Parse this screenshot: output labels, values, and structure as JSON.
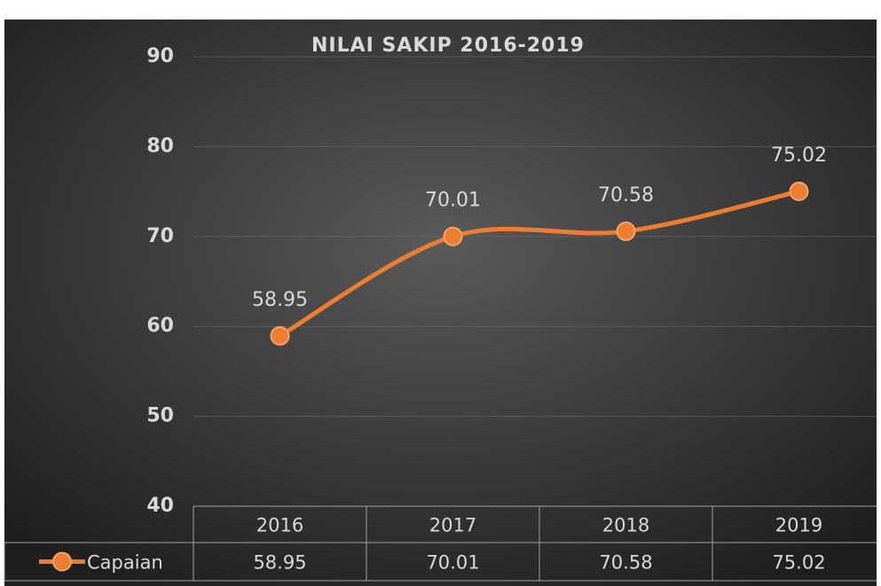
{
  "chart_data": {
    "type": "line",
    "title": "NILAI SAKIP 2016-2019",
    "categories": [
      "2016",
      "2017",
      "2018",
      "2019"
    ],
    "series": [
      {
        "name": "Capaian",
        "color": "#ed7d31",
        "values": [
          58.95,
          70.01,
          70.58,
          75.02
        ]
      }
    ],
    "ylim": [
      40,
      90
    ],
    "yticks": [
      40,
      50,
      60,
      70,
      80,
      90
    ],
    "grid": true,
    "data_table": true
  }
}
